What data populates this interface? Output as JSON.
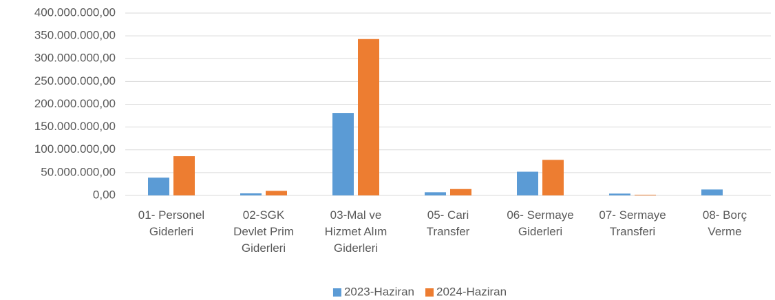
{
  "chart_data": {
    "type": "bar",
    "categories": [
      "01- Personel\nGiderleri",
      "02-SGK\nDevlet Prim\nGiderleri",
      "03-Mal ve\nHizmet Alım\nGiderleri",
      "05- Cari\nTransfer",
      "06- Sermaye\nGiderleri",
      "07- Sermaye\nTransferi",
      "08- Borç\nVerme"
    ],
    "series": [
      {
        "name": "2023-Haziran",
        "color": "#5b9bd5",
        "values": [
          39000000,
          4500000,
          181000000,
          7000000,
          52000000,
          4000000,
          13000000
        ]
      },
      {
        "name": "2024-Haziran",
        "color": "#ed7d31",
        "values": [
          86000000,
          10000000,
          343000000,
          14000000,
          78000000,
          1500000,
          0
        ]
      }
    ],
    "ylim": [
      0,
      400000000
    ],
    "yticks": [
      {
        "value": 0,
        "label": "0,00"
      },
      {
        "value": 50000000,
        "label": "50.000.000,00"
      },
      {
        "value": 100000000,
        "label": "100.000.000,00"
      },
      {
        "value": 150000000,
        "label": "150.000.000,00"
      },
      {
        "value": 200000000,
        "label": "200.000.000,00"
      },
      {
        "value": 250000000,
        "label": "250.000.000,00"
      },
      {
        "value": 300000000,
        "label": "300.000.000,00"
      },
      {
        "value": 350000000,
        "label": "350.000.000,00"
      },
      {
        "value": 400000000,
        "label": "400.000.000,00"
      }
    ],
    "grid": true,
    "legend": "bottom"
  }
}
